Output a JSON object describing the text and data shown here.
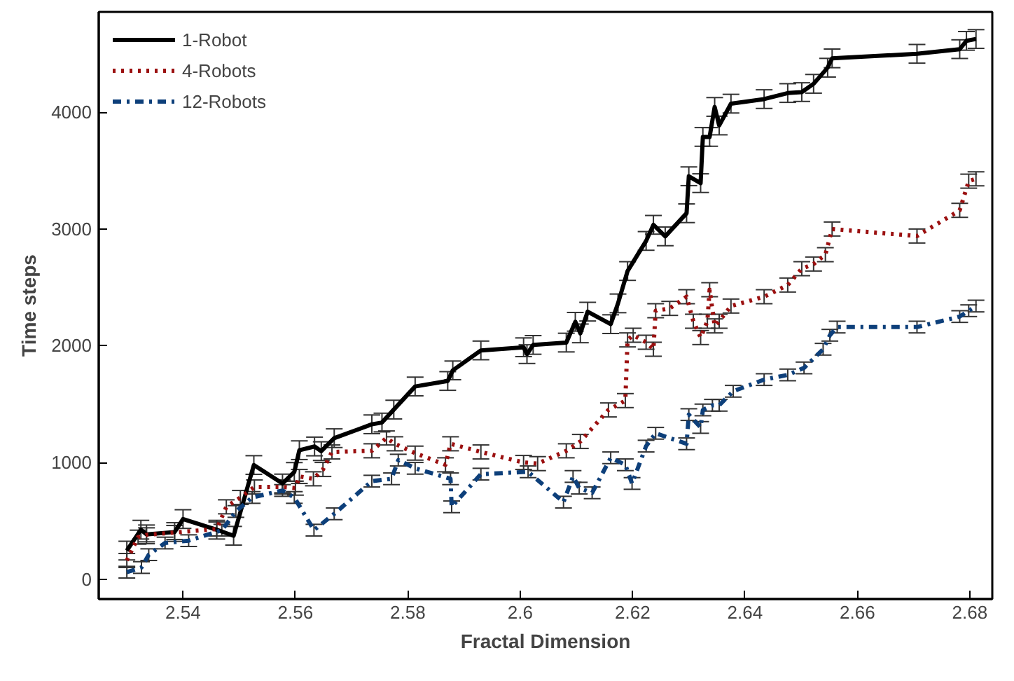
{
  "chart_data": {
    "type": "line",
    "xlabel": "Fractal Dimension",
    "ylabel": "Time steps",
    "xlim": [
      2.525,
      2.684
    ],
    "ylim": [
      -170,
      4860
    ],
    "xticks": [
      2.54,
      2.56,
      2.58,
      2.6,
      2.62,
      2.64,
      2.66,
      2.68
    ],
    "yticks": [
      0,
      1000,
      2000,
      3000,
      4000
    ],
    "grid": false,
    "legend": "top left",
    "marker": "none",
    "series": [
      {
        "name": "1-Robot",
        "color": "#000000",
        "line_style": "solid",
        "x": [
          2.53,
          2.5325,
          2.5335,
          2.5385,
          2.54,
          2.546,
          2.549,
          2.5526,
          2.5577,
          2.5598,
          2.5607,
          2.5634,
          2.5646,
          2.5669,
          2.5736,
          2.5754,
          2.5775,
          2.5813,
          2.5871,
          2.588,
          2.593,
          2.6006,
          2.6012,
          2.6023,
          2.6082,
          2.6098,
          2.6107,
          2.612,
          2.6161,
          2.6174,
          2.6191,
          2.6224,
          2.6237,
          2.6258,
          2.6296,
          2.63,
          2.6321,
          2.6325,
          2.6337,
          2.6346,
          2.6354,
          2.6375,
          2.6434,
          2.6476,
          2.6501,
          2.6522,
          2.6547,
          2.6555,
          2.6706,
          2.6782,
          2.6794,
          2.6811
        ],
        "values": [
          245,
          424,
          384,
          404,
          515,
          424,
          372,
          978,
          820,
          919,
          1105,
          1137,
          1097,
          1208,
          1327,
          1342,
          1453,
          1651,
          1698,
          1789,
          1960,
          1987,
          1928,
          2007,
          2027,
          2205,
          2106,
          2292,
          2185,
          2363,
          2640,
          2898,
          3036,
          2937,
          3135,
          3452,
          3393,
          3789,
          3789,
          4046,
          3887,
          4074,
          4113,
          4165,
          4173,
          4244,
          4382,
          4462,
          4501,
          4541,
          4612,
          4628
        ],
        "errors": [
          80,
          80,
          80,
          80,
          80,
          80,
          80,
          80,
          80,
          80,
          80,
          80,
          80,
          80,
          80,
          80,
          80,
          80,
          80,
          80,
          80,
          80,
          80,
          80,
          80,
          80,
          80,
          80,
          80,
          80,
          80,
          80,
          80,
          80,
          80,
          80,
          80,
          80,
          80,
          80,
          80,
          80,
          80,
          80,
          80,
          80,
          80,
          80,
          80,
          80,
          80,
          80
        ]
      },
      {
        "name": "4-Robots",
        "color": "#9b1010",
        "line_style": "dotted",
        "x": [
          2.53,
          2.532,
          2.5335,
          2.5385,
          2.546,
          2.5477,
          2.5502,
          2.5527,
          2.5577,
          2.56,
          2.5607,
          2.5632,
          2.5649,
          2.5665,
          2.5736,
          2.5762,
          2.5777,
          2.5813,
          2.5867,
          2.5876,
          2.593,
          2.6006,
          2.6031,
          2.6082,
          2.6107,
          2.6157,
          2.6187,
          2.6191,
          2.6201,
          2.6224,
          2.6237,
          2.6241,
          2.6266,
          2.6296,
          2.6308,
          2.6321,
          2.6333,
          2.6337,
          2.6346,
          2.6354,
          2.6375,
          2.6434,
          2.6476,
          2.6501,
          2.6522,
          2.6543,
          2.6555,
          2.6706,
          2.6782,
          2.6798,
          2.6811
        ],
        "values": [
          160,
          360,
          380,
          400,
          430,
          620,
          700,
          790,
          790,
          780,
          880,
          860,
          940,
          1090,
          1100,
          1210,
          1160,
          1080,
          980,
          1160,
          1090,
          1000,
          990,
          1100,
          1180,
          1450,
          1530,
          2050,
          2090,
          2030,
          1970,
          2300,
          2320,
          2420,
          2210,
          2070,
          2210,
          2480,
          2170,
          2210,
          2340,
          2420,
          2520,
          2660,
          2700,
          2780,
          3000,
          2940,
          3160,
          3410,
          3430
        ],
        "errors": [
          60,
          60,
          60,
          60,
          60,
          60,
          60,
          60,
          60,
          60,
          60,
          60,
          60,
          60,
          60,
          60,
          60,
          60,
          60,
          60,
          60,
          60,
          60,
          60,
          60,
          60,
          60,
          60,
          60,
          60,
          60,
          60,
          60,
          60,
          60,
          60,
          60,
          60,
          60,
          60,
          60,
          60,
          60,
          60,
          60,
          60,
          60,
          60,
          60,
          60,
          60
        ]
      },
      {
        "name": "12-Robots",
        "color": "#0d3f7a",
        "line_style": "dashdot",
        "x": [
          2.53,
          2.5326,
          2.5339,
          2.5368,
          2.541,
          2.5469,
          2.5494,
          2.5523,
          2.5577,
          2.5598,
          2.5633,
          2.5669,
          2.5736,
          2.5771,
          2.5783,
          2.5813,
          2.5876,
          2.5878,
          2.593,
          2.6014,
          2.6077,
          2.6094,
          2.6105,
          2.6128,
          2.6161,
          2.6187,
          2.6199,
          2.6224,
          2.6241,
          2.6296,
          2.63,
          2.6321,
          2.6325,
          2.6342,
          2.6354,
          2.6379,
          2.6434,
          2.6476,
          2.6505,
          2.6539,
          2.6551,
          2.6564,
          2.6706,
          2.6782,
          2.6798,
          2.6811
        ],
        "values": [
          60,
          100,
          210,
          310,
          330,
          420,
          580,
          700,
          760,
          700,
          420,
          560,
          840,
          860,
          1020,
          950,
          860,
          620,
          900,
          920,
          660,
          880,
          780,
          740,
          1040,
          980,
          820,
          1140,
          1250,
          1160,
          1410,
          1300,
          1450,
          1490,
          1490,
          1610,
          1710,
          1750,
          1810,
          1970,
          2090,
          2160,
          2160,
          2250,
          2300,
          2340
        ],
        "errors": [
          50,
          50,
          50,
          50,
          50,
          50,
          50,
          50,
          50,
          50,
          50,
          50,
          50,
          50,
          50,
          50,
          50,
          50,
          50,
          50,
          50,
          50,
          50,
          50,
          50,
          50,
          50,
          50,
          50,
          50,
          50,
          50,
          50,
          50,
          50,
          50,
          50,
          50,
          50,
          50,
          50,
          50,
          50,
          50,
          50,
          50
        ]
      }
    ]
  }
}
